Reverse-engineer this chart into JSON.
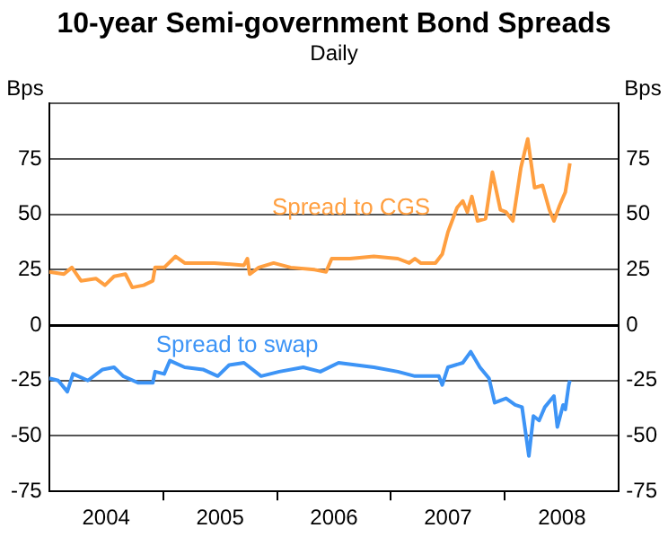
{
  "chart_data": {
    "type": "line",
    "title": "10-year Semi-government Bond Spreads",
    "subtitle": "Daily",
    "ylabel": "Bps",
    "y2label": "Bps",
    "xlim": [
      2004,
      2009
    ],
    "xticks": [
      {
        "value": 2004.5,
        "label": "2004"
      },
      {
        "value": 2005,
        "label": null
      },
      {
        "value": 2005.5,
        "label": "2005"
      },
      {
        "value": 2006,
        "label": null
      },
      {
        "value": 2006.5,
        "label": "2006"
      },
      {
        "value": 2007,
        "label": null
      },
      {
        "value": 2007.5,
        "label": "2007"
      },
      {
        "value": 2008,
        "label": null
      },
      {
        "value": 2008.5,
        "label": "2008"
      }
    ],
    "ylim": [
      -75,
      100
    ],
    "yticks": [
      {
        "value": -75,
        "label": "-75"
      },
      {
        "value": -50,
        "label": "-50"
      },
      {
        "value": -25,
        "label": "-25"
      },
      0,
      25,
      50,
      75,
      {
        "value": 100,
        "label": null
      }
    ],
    "y2lim": [
      -75,
      100
    ],
    "y2ticks": [
      {
        "value": -75,
        "label": "-75"
      },
      {
        "value": -50,
        "label": "-50"
      },
      {
        "value": -25,
        "label": "-25"
      },
      0,
      25,
      50,
      75,
      {
        "value": 100,
        "label": null
      }
    ],
    "grid": "y",
    "legend": false,
    "marker": "none",
    "line_style": "solid",
    "series": [
      {
        "name": "Spread to CGS",
        "color": "#ff9f40",
        "x": [
          2004.0,
          2004.13,
          2004.2,
          2004.28,
          2004.41,
          2004.49,
          2004.57,
          2004.67,
          2004.73,
          2004.83,
          2004.91,
          2004.93,
          2005.01,
          2005.11,
          2005.19,
          2005.45,
          2005.71,
          2005.74,
          2005.76,
          2005.84,
          2005.97,
          2006.12,
          2006.33,
          2006.43,
          2006.48,
          2006.64,
          2006.85,
          2007.06,
          2007.16,
          2007.21,
          2007.26,
          2007.39,
          2007.45,
          2007.5,
          2007.58,
          2007.63,
          2007.67,
          2007.71,
          2007.76,
          2007.83,
          2007.89,
          2007.96,
          2008.01,
          2008.07,
          2008.14,
          2008.2,
          2008.26,
          2008.33,
          2008.39,
          2008.43,
          2008.48,
          2008.53,
          2008.57
        ],
        "values": [
          24,
          23,
          26,
          20,
          21,
          18,
          22,
          23,
          17,
          18,
          20,
          26,
          26,
          31,
          28,
          28,
          27,
          30,
          23,
          26,
          28,
          26,
          25,
          24,
          30,
          30,
          31,
          30,
          28,
          30,
          28,
          28,
          32,
          42,
          53,
          56,
          51,
          58,
          47,
          48,
          69,
          52,
          51,
          47,
          71,
          84,
          62,
          63,
          52,
          47,
          54,
          60,
          73
        ]
      },
      {
        "name": "Spread to swap",
        "color": "#3d94f6",
        "x": [
          2004.0,
          2004.08,
          2004.16,
          2004.21,
          2004.34,
          2004.47,
          2004.57,
          2004.65,
          2004.78,
          2004.91,
          2004.93,
          2005.01,
          2005.06,
          2005.19,
          2005.35,
          2005.48,
          2005.58,
          2005.71,
          2005.86,
          2006.02,
          2006.23,
          2006.38,
          2006.54,
          2006.85,
          2007.06,
          2007.21,
          2007.42,
          2007.45,
          2007.5,
          2007.63,
          2007.7,
          2007.78,
          2007.86,
          2007.91,
          2008.01,
          2008.09,
          2008.15,
          2008.18,
          2008.21,
          2008.25,
          2008.3,
          2008.35,
          2008.43,
          2008.46,
          2008.51,
          2008.53,
          2008.56,
          2008.57
        ],
        "values": [
          -24,
          -25,
          -30,
          -22,
          -25,
          -20,
          -19,
          -23,
          -26,
          -26,
          -21,
          -22,
          -16,
          -19,
          -20,
          -23,
          -18,
          -17,
          -23,
          -21,
          -19,
          -21,
          -17,
          -19,
          -21,
          -23,
          -23,
          -27,
          -19,
          -17,
          -12,
          -19,
          -24,
          -35,
          -33,
          -36,
          -37,
          -48,
          -59,
          -41,
          -43,
          -37,
          -32,
          -46,
          -36,
          -38,
          -27,
          -25
        ]
      }
    ]
  }
}
